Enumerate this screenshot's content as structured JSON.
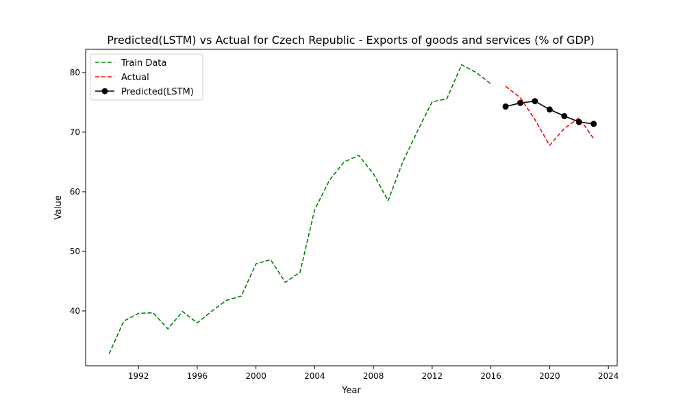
{
  "chart_data": {
    "type": "line",
    "title": "Predicted(LSTM) vs Actual for Czech Republic - Exports of goods and services (% of GDP)",
    "xlabel": "Year",
    "ylabel": "Value",
    "xlim": [
      1988.4,
      2024.6
    ],
    "ylim": [
      30.8,
      83.9
    ],
    "xticks": [
      1992,
      1996,
      2000,
      2004,
      2008,
      2012,
      2016,
      2020,
      2024
    ],
    "yticks": [
      40,
      50,
      60,
      70,
      80
    ],
    "grid": false,
    "legend_position": "top-left",
    "series": [
      {
        "name": "Train Data",
        "color": "#008000",
        "style": "dashed",
        "marker": "none",
        "x": [
          1990,
          1991,
          1992,
          1993,
          1994,
          1995,
          1996,
          1997,
          1998,
          1999,
          2000,
          2001,
          2002,
          2003,
          2004,
          2005,
          2006,
          2007,
          2008,
          2009,
          2010,
          2011,
          2012,
          2013,
          2014,
          2015,
          2016
        ],
        "y": [
          32.8,
          38.3,
          39.6,
          39.7,
          37.0,
          39.9,
          38.0,
          40.0,
          41.8,
          42.5,
          47.9,
          48.6,
          44.8,
          46.5,
          57.0,
          61.9,
          65.0,
          66.1,
          63.0,
          58.5,
          65.0,
          70.2,
          75.1,
          75.6,
          81.3,
          80.0,
          78.1
        ]
      },
      {
        "name": "Actual",
        "color": "#ff0000",
        "style": "dashed",
        "marker": "none",
        "x": [
          2017,
          2018,
          2019,
          2020,
          2021,
          2022,
          2023
        ],
        "y": [
          77.7,
          75.8,
          72.1,
          67.8,
          70.6,
          72.4,
          68.9
        ]
      },
      {
        "name": "Predicted(LSTM)",
        "color": "#000000",
        "style": "solid",
        "marker": "circle",
        "x": [
          2017,
          2018,
          2019,
          2020,
          2021,
          2022,
          2023
        ],
        "y": [
          74.3,
          74.9,
          75.2,
          73.8,
          72.7,
          71.7,
          71.4
        ]
      }
    ]
  }
}
